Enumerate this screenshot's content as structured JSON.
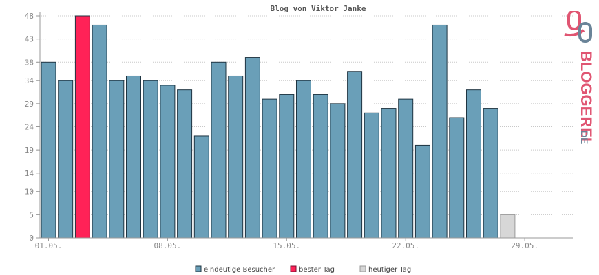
{
  "chart_data": {
    "type": "bar",
    "title": "Blog von Viktor Janke",
    "y_ticks": [
      "0",
      "5",
      "10",
      "14",
      "19",
      "24",
      "29",
      "34",
      "38",
      "43",
      "48"
    ],
    "x_ticks": [
      "01.05.",
      "08.05.",
      "15.05.",
      "22.05.",
      "29.05."
    ],
    "ylim": [
      0,
      48
    ],
    "grid": true,
    "legend_position": "bottom-center",
    "series": [
      {
        "name": "eindeutige Besucher",
        "color": "#6a9fb8",
        "values": [
          38,
          34,
          48,
          46,
          34,
          35,
          34,
          33,
          32,
          22,
          38,
          35,
          39,
          30,
          31,
          34,
          31,
          29,
          36,
          27,
          28,
          30,
          20,
          46,
          26,
          32,
          28
        ]
      },
      {
        "name": "bester Tag",
        "color": "#ff2257",
        "index": 2
      },
      {
        "name": "heutiger Tag",
        "color": "#d7d7d7",
        "values": [
          5
        ]
      }
    ],
    "bar_count": 31
  },
  "logo": {
    "text_main": "BLOGGEREI",
    "text_suffix": ".DE",
    "colors": {
      "pink": "#e05572",
      "slate": "#6a8498"
    }
  }
}
